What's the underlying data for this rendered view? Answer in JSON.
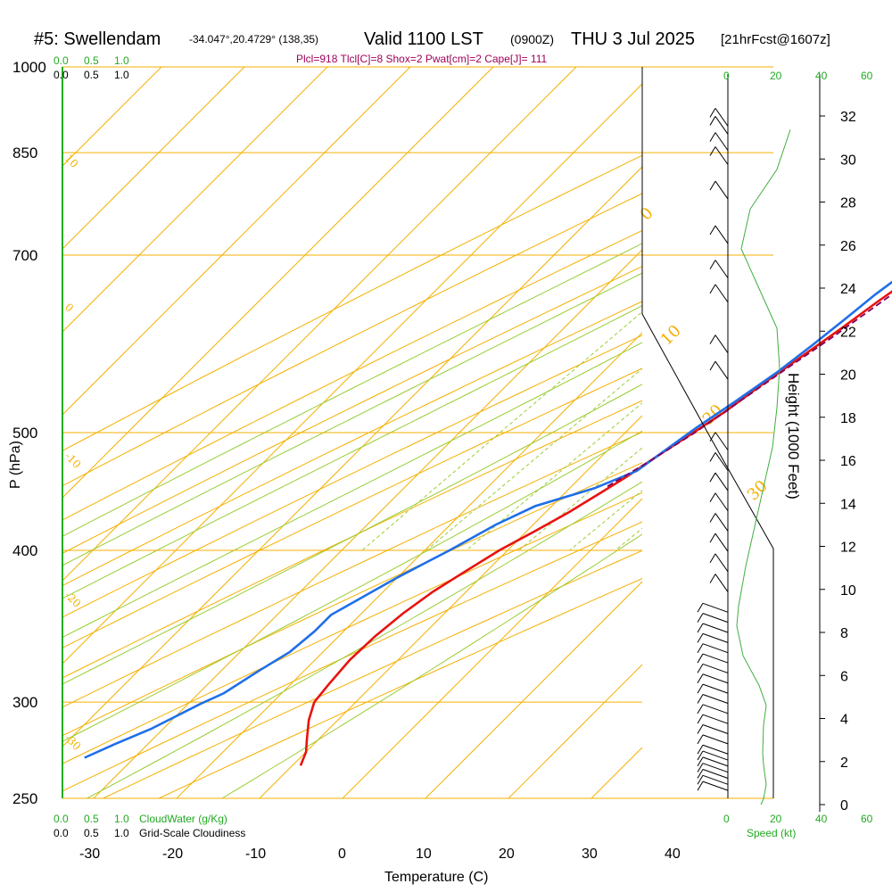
{
  "header": {
    "station": "#5: Swellendam",
    "coords": "-34.047°,20.4729° (138,35)",
    "valid": "Valid 1100 LST",
    "zulu": "(0900Z)",
    "date": "THU 3 Jul 2025",
    "forecast": "[21hrFcst@1607z]",
    "params": "Plcl=918 Tlcl[C]=8 Shox=2 Pwat[cm]=2 Cape[J]= 111"
  },
  "labels": {
    "cloud_water": "CloudWater (g/Kg)",
    "cloudiness": "Grid-Scale Cloudiness",
    "speed": "Speed (kt)",
    "height_axis": "Height (1000 Feet)",
    "pressure_axis": "P (hPa)",
    "temperature_axis": "Temperature (C)",
    "scale_green": [
      "0.0",
      "0.5",
      "1.0"
    ],
    "scale_black": [
      "0.0",
      "0.5",
      "1.0"
    ],
    "speed_ticks": [
      "0",
      "20",
      "40",
      "60"
    ]
  },
  "colors": {
    "temperature": "#e8130f",
    "dewpoint": "#1f6fe8",
    "parcel": "#800060",
    "isotherm": "#f5b000",
    "dry_adiabat": "#f5b000",
    "moist_adiabat": "#9acd32",
    "mixing_ratio": "#9acd32",
    "cloud_water": "#22aa22",
    "speed_line": "#3fae3f",
    "title": "#000000",
    "params": "#a0005a"
  },
  "chart_data": {
    "type": "line",
    "xlabel": "Temperature (C)",
    "ylabel": "P (hPa)",
    "xlim": [
      -36,
      36
    ],
    "ylim": [
      1000,
      250
    ],
    "x_ticks": [
      -30,
      -20,
      -10,
      0,
      10,
      20,
      30,
      40
    ],
    "pressure_ticks": [
      1000,
      850,
      700,
      500,
      400,
      300,
      250
    ],
    "height_ticks": [
      0,
      2,
      4,
      6,
      8,
      10,
      12,
      14,
      16,
      18,
      20,
      22,
      24,
      26,
      28,
      30,
      32
    ],
    "isotherm_labels": [
      10,
      0,
      -10,
      -20,
      -30
    ],
    "dry_adiabat_labels": [
      0,
      10,
      20,
      30
    ],
    "mixing_ratio_labels": [
      1,
      2,
      3,
      5,
      8,
      12,
      20
    ],
    "series": [
      {
        "name": "Temperature",
        "points": [
          [
            17.2,
            1000
          ],
          [
            15.0,
            985
          ],
          [
            13.0,
            965
          ],
          [
            12.0,
            940
          ],
          [
            12.2,
            915
          ],
          [
            11.5,
            880
          ],
          [
            10.2,
            840
          ],
          [
            9.0,
            800
          ],
          [
            8.0,
            760
          ],
          [
            7.5,
            730
          ],
          [
            6.8,
            700
          ],
          [
            5.8,
            670
          ],
          [
            4.6,
            640
          ],
          [
            3.5,
            610
          ],
          [
            2.2,
            580
          ],
          [
            0.8,
            550
          ],
          [
            -0.5,
            520
          ],
          [
            -1.8,
            500
          ],
          [
            -3.2,
            480
          ],
          [
            -4.5,
            460
          ],
          [
            -5.8,
            445
          ],
          [
            -7.2,
            430
          ],
          [
            -9.0,
            415
          ],
          [
            -11.0,
            400
          ],
          [
            -12.5,
            385
          ],
          [
            -14.0,
            370
          ],
          [
            -15.0,
            355
          ],
          [
            -15.6,
            340
          ],
          [
            -15.8,
            325
          ],
          [
            -15.4,
            310
          ],
          [
            -15.0,
            300
          ],
          [
            -13.5,
            290
          ],
          [
            -11.5,
            280
          ],
          [
            -10.0,
            273
          ],
          [
            -9.0,
            266
          ]
        ]
      },
      {
        "name": "Dewpoint",
        "points": [
          [
            11.2,
            1000
          ],
          [
            10.8,
            990
          ],
          [
            10.8,
            960
          ],
          [
            11.3,
            935
          ],
          [
            11.0,
            920
          ],
          [
            9.5,
            905
          ],
          [
            8.8,
            880
          ],
          [
            8.8,
            850
          ],
          [
            8.5,
            810
          ],
          [
            8.3,
            790
          ],
          [
            7.2,
            760
          ],
          [
            6.0,
            730
          ],
          [
            5.2,
            700
          ],
          [
            4.5,
            680
          ],
          [
            3.5,
            650
          ],
          [
            2.8,
            620
          ],
          [
            2.0,
            590
          ],
          [
            1.0,
            560
          ],
          [
            -0.5,
            530
          ],
          [
            -2.0,
            505
          ],
          [
            -3.0,
            485
          ],
          [
            -4.0,
            465
          ],
          [
            -7.0,
            450
          ],
          [
            -12.0,
            435
          ],
          [
            -14.5,
            420
          ],
          [
            -17.0,
            400
          ],
          [
            -18.5,
            390
          ],
          [
            -20.0,
            380
          ],
          [
            -22.0,
            365
          ],
          [
            -23.5,
            354
          ],
          [
            -23.5,
            343
          ],
          [
            -24.0,
            330
          ],
          [
            -25.5,
            318
          ],
          [
            -27.0,
            305
          ],
          [
            -28.5,
            299
          ],
          [
            -31.5,
            285
          ],
          [
            -34.0,
            277
          ],
          [
            -36.0,
            270
          ]
        ]
      },
      {
        "name": "Parcel",
        "points": [
          [
            12.0,
            850
          ],
          [
            10.5,
            800
          ],
          [
            9.4,
            760
          ],
          [
            8.6,
            740
          ],
          [
            7.8,
            710
          ],
          [
            6.6,
            680
          ],
          [
            5.5,
            650
          ],
          [
            3.5,
            600
          ],
          [
            1.5,
            560
          ],
          [
            -0.5,
            520
          ],
          [
            -1.6,
            500
          ],
          [
            -3.5,
            475
          ],
          [
            -5.8,
            450
          ]
        ]
      }
    ],
    "cloud_water_profile": [
      [
        0.37,
        0
      ],
      [
        0.4,
        0.3
      ],
      [
        0.43,
        1
      ],
      [
        0.4,
        2
      ],
      [
        0.39,
        2.6
      ],
      [
        0.4,
        4
      ],
      [
        0.43,
        5
      ],
      [
        0.35,
        6
      ],
      [
        0.17,
        7.5
      ],
      [
        0.1,
        9
      ],
      [
        0.12,
        10
      ],
      [
        0.2,
        12
      ],
      [
        0.3,
        14
      ],
      [
        0.4,
        16
      ],
      [
        0.5,
        18
      ],
      [
        0.55,
        20
      ],
      [
        0.58,
        22
      ],
      [
        0.55,
        24
      ],
      [
        0.35,
        26
      ],
      [
        0.15,
        28
      ],
      [
        0.25,
        30
      ],
      [
        0.55,
        32
      ],
      [
        0.7,
        34
      ]
    ],
    "wind_barb_heights": [
      33.5,
      33.1,
      32.3,
      31.6,
      29.9,
      27.7,
      26.0,
      24.8,
      22.3,
      21.0,
      17.5,
      16.5,
      15.5,
      14.5,
      13.5,
      12.5,
      11.5,
      10.5,
      9.5,
      9.0,
      8.5,
      8.0,
      7.5,
      7.0,
      6.5,
      6.0,
      5.5,
      5.0,
      4.5,
      4.0,
      3.5,
      3.0,
      2.5,
      2.2,
      1.9,
      1.6,
      1.3,
      1.0,
      0.7
    ]
  }
}
